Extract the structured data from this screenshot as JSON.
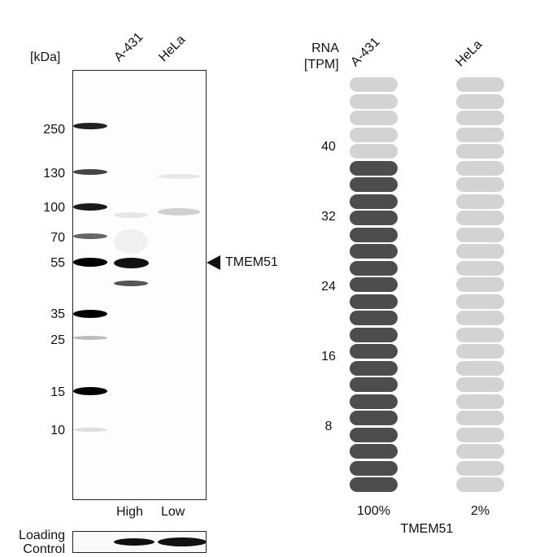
{
  "western_blot": {
    "unit_label": "[kDa]",
    "lanes": [
      "A-431",
      "HeLa"
    ],
    "lane_levels": [
      "High",
      "Low"
    ],
    "markers": [
      "250",
      "130",
      "100",
      "70",
      "55",
      "35",
      "25",
      "15",
      "10"
    ],
    "target_label": "TMEM51",
    "loading_control_label": [
      "Loading",
      "Control"
    ]
  },
  "rna": {
    "header": [
      "RNA",
      "[TPM]"
    ],
    "columns": [
      "A-431",
      "HeLa"
    ],
    "scale_ticks": [
      "40",
      "32",
      "24",
      "16",
      "8"
    ],
    "total_segments": 25,
    "filled_segments": [
      20,
      0
    ],
    "percentages": [
      "100%",
      "2%"
    ],
    "gene_label": "TMEM51",
    "colors": {
      "filled": "#4d4d4d",
      "empty": "#d3d3d3"
    }
  }
}
